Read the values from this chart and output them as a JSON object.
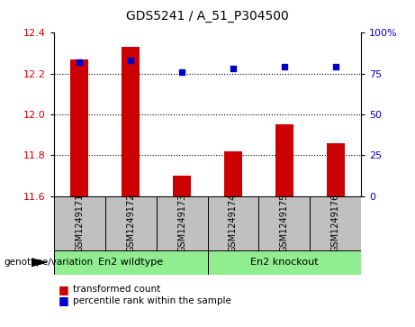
{
  "title": "GDS5241 / A_51_P304500",
  "samples": [
    "GSM1249171",
    "GSM1249172",
    "GSM1249173",
    "GSM1249174",
    "GSM1249175",
    "GSM1249176"
  ],
  "transformed_counts": [
    12.27,
    12.33,
    11.7,
    11.82,
    11.95,
    11.86
  ],
  "percentile_ranks": [
    82,
    83,
    76,
    78,
    79,
    79
  ],
  "ylim_left": [
    11.6,
    12.4
  ],
  "ylim_right": [
    0,
    100
  ],
  "yticks_left": [
    11.6,
    11.8,
    12.0,
    12.2,
    12.4
  ],
  "yticks_right": [
    0,
    25,
    50,
    75,
    100
  ],
  "bar_color": "#cc0000",
  "dot_color": "#0000cc",
  "bar_width": 0.35,
  "dot_size": 25,
  "grid_color": "black",
  "grid_style": "dotted",
  "label_color_left": "#cc0000",
  "label_color_right": "#0000cc",
  "genotype_label": "genotype/variation",
  "legend_bar": "transformed count",
  "legend_dot": "percentile rank within the sample",
  "xlabel_area_color": "#c0c0c0",
  "group_area_color": "#90ee90",
  "group_info": [
    {
      "label": "En2 wildtype",
      "start": 0,
      "end": 3
    },
    {
      "label": "En2 knockout",
      "start": 3,
      "end": 6
    }
  ],
  "figure_width": 4.61,
  "figure_height": 3.63
}
